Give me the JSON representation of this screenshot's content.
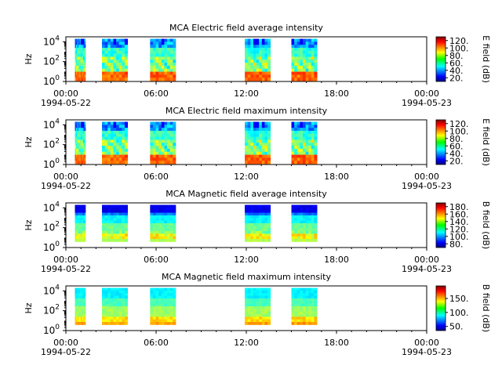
{
  "chart_data": [
    {
      "type": "heatmap",
      "title": "MCA  Electric field average intensity",
      "ylabel": "Hz",
      "ytick_base": "10",
      "yticks": [
        "0",
        "2",
        "4"
      ],
      "xticks": [
        "00:00",
        "06:00",
        "12:00",
        "18:00",
        "00:00"
      ],
      "xdate_left": "1994-05-22",
      "xdate_right": "1994-05-23",
      "xlim_hours": [
        0,
        24
      ],
      "ylim_log10": [
        0,
        4.5
      ],
      "colorbar": {
        "label": "E field (dB)",
        "ticks": [
          20,
          40,
          60,
          80,
          100,
          120
        ],
        "range": [
          10,
          130
        ]
      },
      "segments": [
        [
          0,
          0.9
        ],
        [
          2.4,
          4.1
        ],
        [
          5.6,
          7.3
        ],
        [
          11.9,
          13.6
        ],
        [
          15,
          16.7
        ]
      ],
      "pattern": "efield"
    },
    {
      "type": "heatmap",
      "title": "MCA  Electric field maximum intensity",
      "ylabel": "Hz",
      "ytick_base": "10",
      "yticks": [
        "0",
        "2",
        "4"
      ],
      "xticks": [
        "00:00",
        "06:00",
        "12:00",
        "18:00",
        "00:00"
      ],
      "xdate_left": "1994-05-22",
      "xdate_right": "1994-05-23",
      "xlim_hours": [
        0,
        24
      ],
      "ylim_log10": [
        0,
        4.5
      ],
      "colorbar": {
        "label": "E field (dB)",
        "ticks": [
          20,
          40,
          60,
          80,
          100,
          120
        ],
        "range": [
          10,
          130
        ]
      },
      "segments": [
        [
          0,
          0.9
        ],
        [
          2.4,
          4.1
        ],
        [
          5.6,
          7.3
        ],
        [
          11.9,
          13.6
        ],
        [
          15,
          16.7
        ]
      ],
      "pattern": "efield"
    },
    {
      "type": "heatmap",
      "title": "MCA  Magnetic field average intensity",
      "ylabel": "Hz",
      "ytick_base": "10",
      "yticks": [
        "0",
        "2",
        "4"
      ],
      "xticks": [
        "00:00",
        "06:00",
        "12:00",
        "18:00",
        "00:00"
      ],
      "xdate_left": "1994-05-22",
      "xdate_right": "1994-05-23",
      "xlim_hours": [
        0,
        24
      ],
      "ylim_log10": [
        0,
        4.5
      ],
      "colorbar": {
        "label": "B field (dB)",
        "ticks": [
          80,
          100,
          120,
          140,
          160,
          180
        ],
        "range": [
          70,
          190
        ]
      },
      "segments": [
        [
          0,
          0.9
        ],
        [
          2.4,
          4.1
        ],
        [
          5.6,
          7.3
        ],
        [
          11.9,
          13.6
        ],
        [
          15,
          16.7
        ]
      ],
      "pattern": "bavg"
    },
    {
      "type": "heatmap",
      "title": "MCA  Magnetic field maximum intensity",
      "ylabel": "Hz",
      "ytick_base": "10",
      "yticks": [
        "0",
        "2",
        "4"
      ],
      "xticks": [
        "00:00",
        "06:00",
        "12:00",
        "18:00",
        "00:00"
      ],
      "xdate_left": "1994-05-22",
      "xdate_right": "1994-05-23",
      "xlim_hours": [
        0,
        24
      ],
      "ylim_log10": [
        0,
        4.5
      ],
      "colorbar": {
        "label": "B field (dB)",
        "ticks": [
          50,
          100,
          150
        ],
        "range": [
          35,
          195
        ]
      },
      "segments": [
        [
          0,
          0.9
        ],
        [
          2.4,
          4.1
        ],
        [
          5.6,
          7.3
        ],
        [
          11.9,
          13.6
        ],
        [
          15,
          16.7
        ]
      ],
      "pattern": "bmax"
    }
  ]
}
